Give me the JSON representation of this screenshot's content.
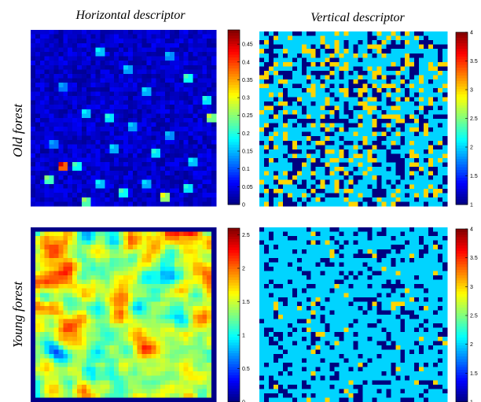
{
  "figure": {
    "column_titles": [
      "Horizontal descriptor",
      "Vertical descriptor"
    ],
    "row_titles": [
      "Old forest",
      "Young forest"
    ]
  },
  "chart_data": [
    {
      "type": "heatmap",
      "row": "Old forest",
      "column": "Horizontal descriptor",
      "colormap": "jet",
      "colorbar": {
        "min": 0,
        "max": 0.49,
        "ticks": [
          0,
          0.05,
          0.1,
          0.15,
          0.2,
          0.25,
          0.3,
          0.35,
          0.4,
          0.45
        ],
        "tick_labels": [
          "0",
          "0.05",
          "0.1",
          "0.15",
          "0.2",
          "0.25",
          "0.3",
          "0.35",
          "0.4",
          "0.45"
        ]
      },
      "grid_size": 40,
      "pattern": "mostly near 0 with sparse square blobs around 0.15-0.3; peak near 0.45",
      "hotspots": [
        {
          "r": 4,
          "c": 14,
          "v": 0.18
        },
        {
          "r": 5,
          "c": 29,
          "v": 0.15
        },
        {
          "r": 8,
          "c": 20,
          "v": 0.16
        },
        {
          "r": 10,
          "c": 33,
          "v": 0.22
        },
        {
          "r": 12,
          "c": 6,
          "v": 0.14
        },
        {
          "r": 13,
          "c": 24,
          "v": 0.17
        },
        {
          "r": 15,
          "c": 37,
          "v": 0.2
        },
        {
          "r": 18,
          "c": 11,
          "v": 0.18
        },
        {
          "r": 19,
          "c": 16,
          "v": 0.2
        },
        {
          "r": 19,
          "c": 38,
          "v": 0.28
        },
        {
          "r": 21,
          "c": 21,
          "v": 0.16
        },
        {
          "r": 23,
          "c": 29,
          "v": 0.15
        },
        {
          "r": 25,
          "c": 4,
          "v": 0.14
        },
        {
          "r": 26,
          "c": 17,
          "v": 0.17
        },
        {
          "r": 27,
          "c": 26,
          "v": 0.2
        },
        {
          "r": 29,
          "c": 34,
          "v": 0.18
        },
        {
          "r": 30,
          "c": 9,
          "v": 0.22
        },
        {
          "r": 30,
          "c": 6,
          "v": 0.45
        },
        {
          "r": 33,
          "c": 3,
          "v": 0.25
        },
        {
          "r": 34,
          "c": 14,
          "v": 0.18
        },
        {
          "r": 34,
          "c": 24,
          "v": 0.17
        },
        {
          "r": 35,
          "c": 33,
          "v": 0.2
        },
        {
          "r": 36,
          "c": 19,
          "v": 0.22
        },
        {
          "r": 37,
          "c": 28,
          "v": 0.3
        },
        {
          "r": 38,
          "c": 11,
          "v": 0.26
        }
      ]
    },
    {
      "type": "heatmap",
      "row": "Old forest",
      "column": "Vertical descriptor",
      "colormap": "jet",
      "colorbar": {
        "min": 1,
        "max": 4,
        "ticks": [
          1,
          1.5,
          2,
          2.5,
          3,
          3.5,
          4
        ],
        "tick_labels": [
          "1",
          "1.5",
          "2",
          "2.5",
          "3",
          "3.5",
          "4"
        ]
      },
      "grid_size": 40,
      "category_values": [
        1,
        2,
        3,
        4
      ],
      "approx_fractions": {
        "1": 0.28,
        "2": 0.55,
        "3": 0.17,
        "4": 0.0
      }
    },
    {
      "type": "heatmap",
      "row": "Young forest",
      "column": "Horizontal descriptor",
      "colormap": "jet",
      "colorbar": {
        "min": 0,
        "max": 2.6,
        "ticks": [
          0,
          0.5,
          1,
          1.5,
          2,
          2.5
        ],
        "tick_labels": [
          "0",
          "0.5",
          "1",
          "1.5",
          "2",
          "2.5"
        ]
      },
      "grid_size": 40,
      "pattern": "smooth field of values mostly 0.7-2.2 with occasional hot spots; near 0 along the border frame"
    },
    {
      "type": "heatmap",
      "row": "Young forest",
      "column": "Vertical descriptor",
      "colormap": "jet",
      "colorbar": {
        "min": 1,
        "max": 4,
        "ticks": [
          1,
          1.5,
          2,
          2.5,
          3,
          3.5,
          4
        ],
        "tick_labels": [
          "1",
          "1.5",
          "2",
          "2.5",
          "3",
          "3.5",
          "4"
        ]
      },
      "grid_size": 40,
      "category_values": [
        1,
        2,
        3,
        4
      ],
      "approx_fractions": {
        "1": 0.22,
        "2": 0.75,
        "3": 0.03,
        "4": 0.0
      }
    }
  ]
}
